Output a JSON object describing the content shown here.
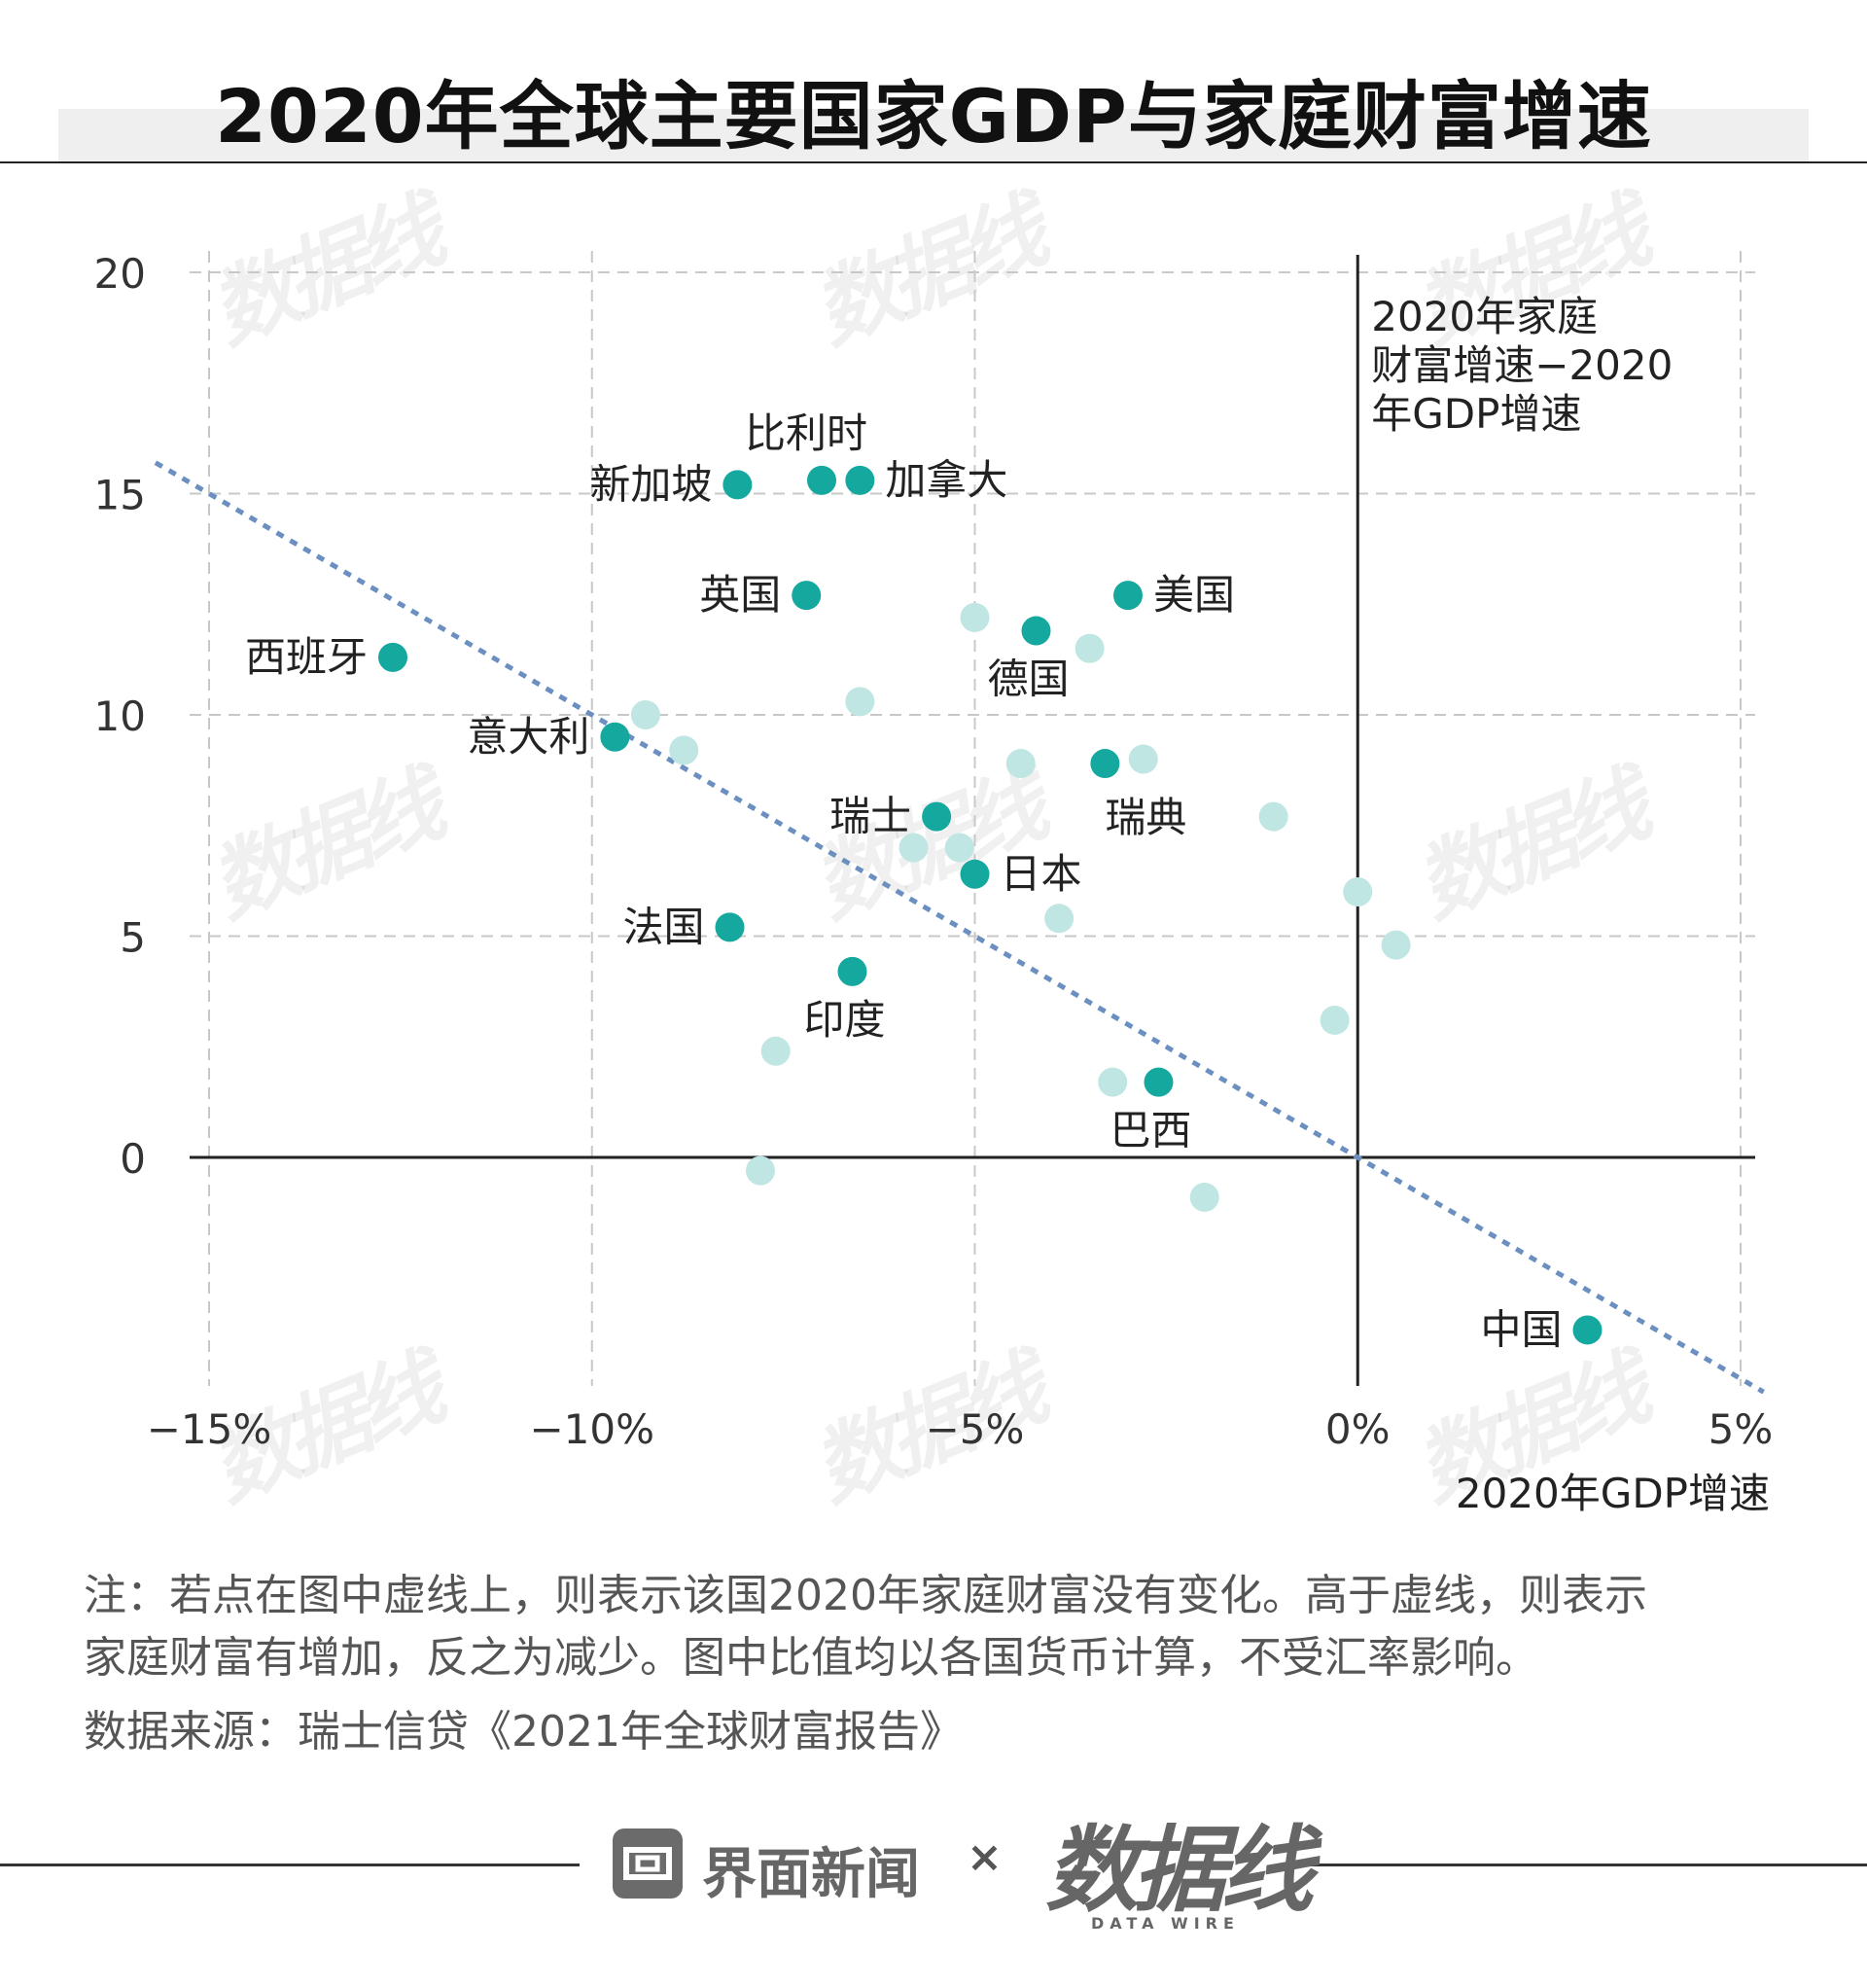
{
  "title": "2020年全球主要国家GDP与家庭财富增速",
  "chart_data": {
    "type": "scatter",
    "xlabel": "2020年GDP增速",
    "ylabel": "",
    "xlim": [
      -15.5,
      5.3
    ],
    "ylim": [
      -5.3,
      20.5
    ],
    "x_ticks": [
      -15,
      -10,
      -5,
      0,
      5
    ],
    "x_tick_labels": [
      "−15%",
      "−10%",
      "−5%",
      "0%",
      "5%"
    ],
    "y_ticks": [
      0,
      5,
      10,
      15,
      20
    ],
    "y_tick_labels": [
      "0",
      "5",
      "10",
      "15",
      "20"
    ],
    "grid": true,
    "reference_line": {
      "label": "2020年家庭财富增速−2020年GDP增速",
      "x_start": -15.7,
      "x_end": 5.3,
      "slope": -1
    },
    "highlight_color": "#14a89e",
    "background_color": "#bfe6e2",
    "line_color": "#6a8fc0",
    "highlighted": [
      {
        "name": "新加坡",
        "x": -8.1,
        "y": 15.2,
        "label_pos": "left"
      },
      {
        "name": "比利时",
        "x": -7.0,
        "y": 15.3,
        "label_pos": "top"
      },
      {
        "name": "加拿大",
        "x": -6.5,
        "y": 15.3,
        "label_pos": "right"
      },
      {
        "name": "英国",
        "x": -7.2,
        "y": 12.7,
        "label_pos": "left"
      },
      {
        "name": "美国",
        "x": -3.0,
        "y": 12.7,
        "label_pos": "right"
      },
      {
        "name": "德国",
        "x": -4.2,
        "y": 11.9,
        "label_pos": "below"
      },
      {
        "name": "西班牙",
        "x": -12.6,
        "y": 11.3,
        "label_pos": "left"
      },
      {
        "name": "意大利",
        "x": -9.7,
        "y": 9.5,
        "label_pos": "left"
      },
      {
        "name": "瑞典",
        "x": -3.3,
        "y": 8.9,
        "label_pos": "below-right"
      },
      {
        "name": "瑞士",
        "x": -5.5,
        "y": 7.7,
        "label_pos": "left"
      },
      {
        "name": "日本",
        "x": -5.0,
        "y": 6.4,
        "label_pos": "right"
      },
      {
        "name": "法国",
        "x": -8.2,
        "y": 5.2,
        "label_pos": "left"
      },
      {
        "name": "印度",
        "x": -6.6,
        "y": 4.2,
        "label_pos": "below"
      },
      {
        "name": "巴西",
        "x": -2.6,
        "y": 1.7,
        "label_pos": "below"
      },
      {
        "name": "中国",
        "x": 3.0,
        "y": -3.9,
        "label_pos": "left"
      }
    ],
    "others": [
      {
        "x": -5.0,
        "y": 12.2
      },
      {
        "x": -3.5,
        "y": 11.5
      },
      {
        "x": -6.5,
        "y": 10.3
      },
      {
        "x": -9.3,
        "y": 10.0
      },
      {
        "x": -8.8,
        "y": 9.2
      },
      {
        "x": -4.4,
        "y": 8.9
      },
      {
        "x": -2.8,
        "y": 9.0
      },
      {
        "x": -1.1,
        "y": 7.7
      },
      {
        "x": -5.8,
        "y": 7.0
      },
      {
        "x": -5.2,
        "y": 7.0
      },
      {
        "x": -3.9,
        "y": 5.4
      },
      {
        "x": 0.0,
        "y": 6.0
      },
      {
        "x": 0.5,
        "y": 4.8
      },
      {
        "x": -0.3,
        "y": 3.1
      },
      {
        "x": -7.6,
        "y": 2.4
      },
      {
        "x": -3.2,
        "y": 1.7
      },
      {
        "x": -7.8,
        "y": -0.3
      },
      {
        "x": -2.0,
        "y": -0.9
      }
    ]
  },
  "notes": {
    "note_line1": "注：若点在图中虚线上，则表示该国2020年家庭财富没有变化。高于虚线，则表示",
    "note_line2": "家庭财富有增加，反之为减少。图中比值均以各国货币计算，不受汇率影响。",
    "source": "数据来源：瑞士信贷《2021年全球财富报告》"
  },
  "footer": {
    "brand1": "界面新闻",
    "times": "×",
    "brand2": "数据线",
    "brand2_sub": "DATA WIRE"
  },
  "watermark_text": "数据线"
}
